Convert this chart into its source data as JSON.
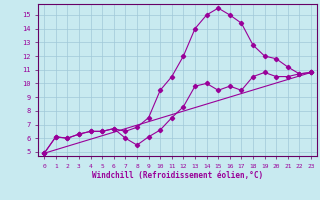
{
  "title": "",
  "xlabel": "Windchill (Refroidissement éolien,°C)",
  "bg_color": "#c8eaf0",
  "grid_color": "#a0c8d8",
  "line_color": "#990099",
  "spine_color": "#660066",
  "xlim": [
    -0.5,
    23.5
  ],
  "ylim": [
    4.7,
    15.8
  ],
  "xticks": [
    0,
    1,
    2,
    3,
    4,
    5,
    6,
    7,
    8,
    9,
    10,
    11,
    12,
    13,
    14,
    15,
    16,
    17,
    18,
    19,
    20,
    21,
    22,
    23
  ],
  "yticks": [
    5,
    6,
    7,
    8,
    9,
    10,
    11,
    12,
    13,
    14,
    15
  ],
  "series1_x": [
    0,
    1,
    2,
    3,
    4,
    5,
    6,
    7,
    8,
    9,
    10,
    11,
    12,
    13,
    14,
    15,
    16,
    17,
    18,
    19,
    20,
    21,
    22,
    23
  ],
  "series1_y": [
    4.9,
    6.1,
    6.0,
    6.3,
    6.5,
    6.5,
    6.7,
    6.0,
    5.5,
    6.1,
    6.6,
    7.5,
    8.3,
    9.8,
    10.0,
    9.5,
    9.8,
    9.5,
    10.5,
    10.8,
    10.5,
    10.5,
    10.7,
    10.8
  ],
  "series2_x": [
    0,
    1,
    2,
    3,
    4,
    5,
    6,
    7,
    8,
    9,
    10,
    11,
    12,
    13,
    14,
    15,
    16,
    17,
    18,
    19,
    20,
    21,
    22,
    23
  ],
  "series2_y": [
    4.9,
    6.1,
    6.0,
    6.3,
    6.5,
    6.5,
    6.7,
    6.5,
    6.8,
    7.5,
    9.5,
    10.5,
    12.0,
    14.0,
    15.0,
    15.5,
    15.0,
    14.4,
    12.8,
    12.0,
    11.8,
    11.2,
    10.7,
    10.8
  ],
  "series3_x": [
    0,
    23
  ],
  "series3_y": [
    4.9,
    10.8
  ],
  "marker": "D",
  "markersize": 2.2,
  "linewidth": 0.8
}
